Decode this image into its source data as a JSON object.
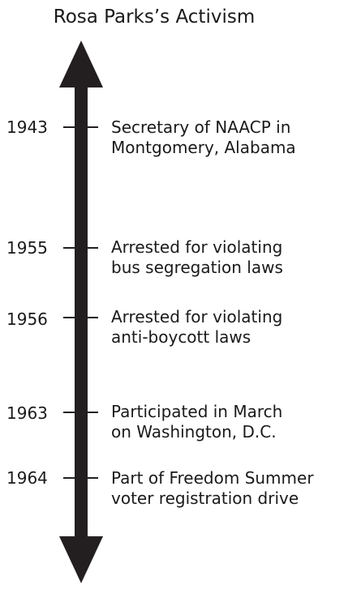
{
  "title": "Rosa Parks’s Activism",
  "colors": {
    "arrow": "#231f20",
    "text": "#1a1a1a"
  },
  "events": [
    {
      "year": "1943",
      "lines": [
        "Secretary of NAACP in",
        "Montgomery, Alabama"
      ]
    },
    {
      "year": "1955",
      "lines": [
        "Arrested for violating",
        "bus segregation laws"
      ]
    },
    {
      "year": "1956",
      "lines": [
        "Arrested for violating",
        "anti-boycott laws"
      ]
    },
    {
      "year": "1963",
      "lines": [
        "Participated in March",
        "on Washington, D.C."
      ]
    },
    {
      "year": "1964",
      "lines": [
        "Part of Freedom Summer",
        "voter registration drive"
      ]
    }
  ]
}
